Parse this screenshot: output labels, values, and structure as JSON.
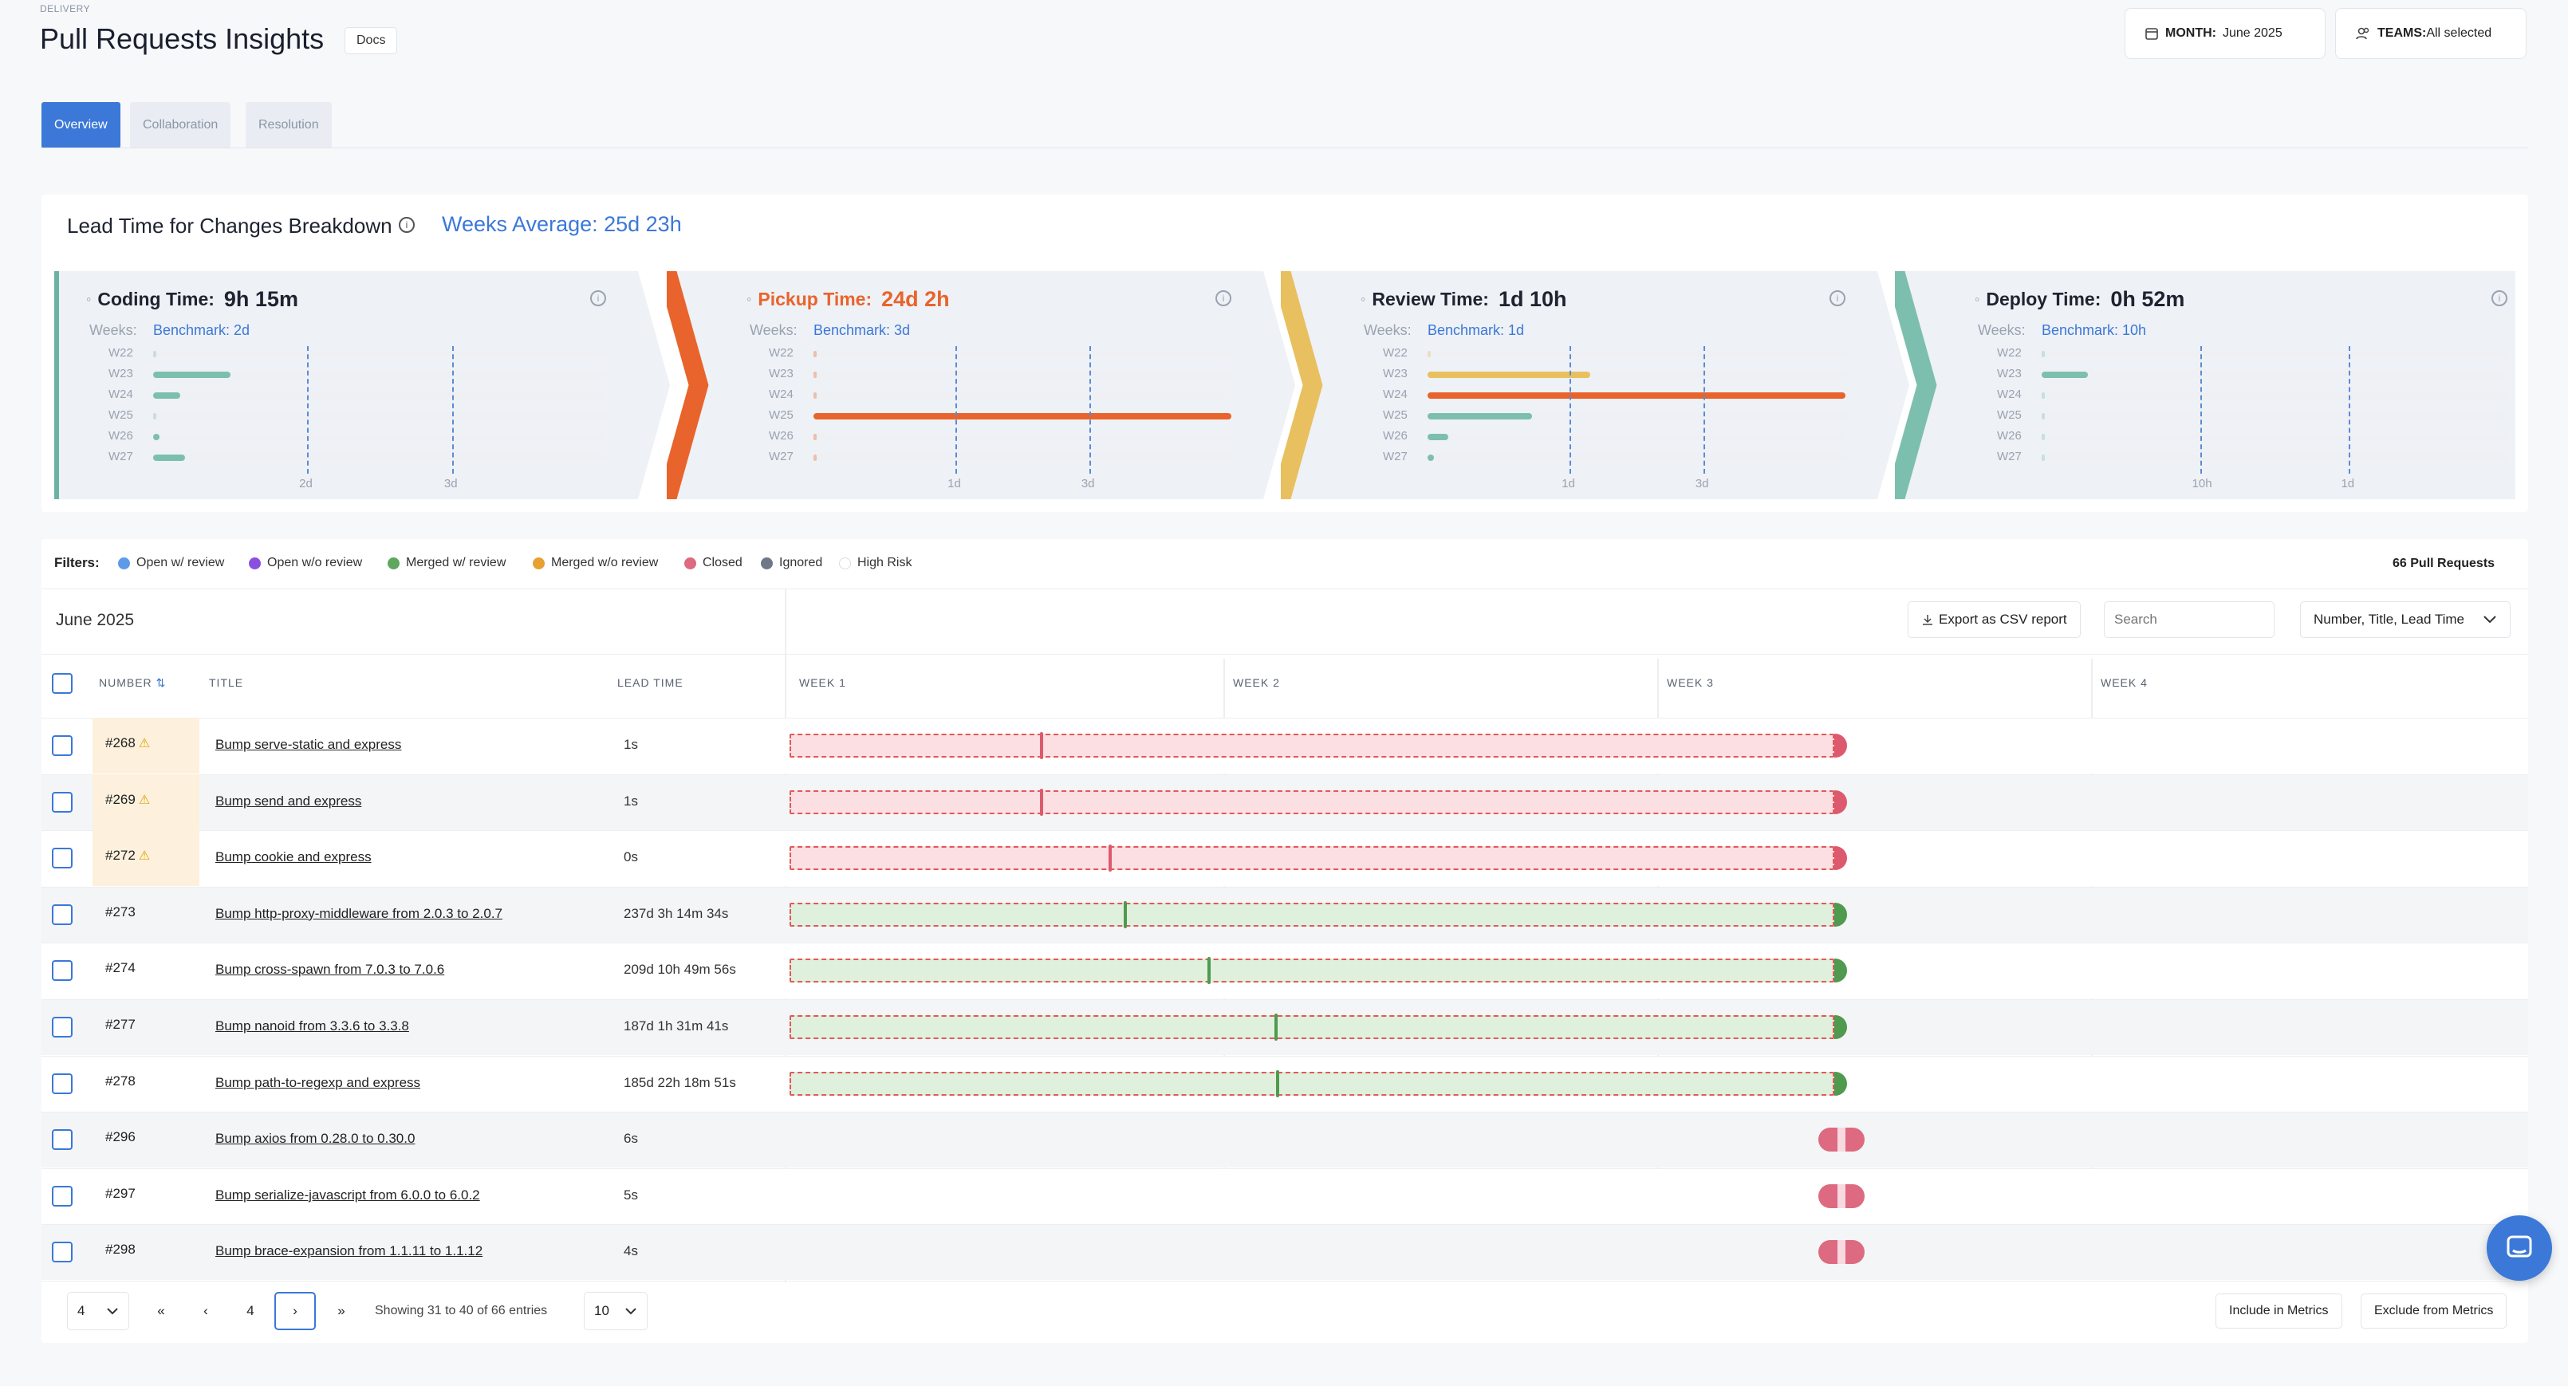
{
  "header": {
    "eyebrow": "DELIVERY",
    "title": "Pull Requests Insights",
    "docs_label": "Docs",
    "month_label": "MONTH:",
    "month_value": "June 2025",
    "teams_label": "TEAMS:",
    "teams_value": "All selected"
  },
  "tabs": [
    "Overview",
    "Collaboration",
    "Resolution"
  ],
  "lead": {
    "title": "Lead Time for Changes Breakdown",
    "weeks_average": "Weeks Average: 25d 23h",
    "weeks_label": "Weeks:",
    "week_names": [
      "W22",
      "W23",
      "W24",
      "W25",
      "W26",
      "W27"
    ],
    "stages": [
      {
        "name": "Coding Time:",
        "value": "9h 15m",
        "benchmark": "Benchmark: 2d",
        "color": "#6db3a5",
        "ticks": [
          "2d",
          "3d"
        ],
        "bars": [
          0,
          0.17,
          0.06,
          0,
          0.01,
          0.07
        ],
        "bar_colors": [
          "#7dbfae",
          "#7dbfae",
          "#7dbfae",
          "#7dbfae",
          "#7dbfae",
          "#7dbfae"
        ]
      },
      {
        "name": "Pickup Time:",
        "value": "24d 2h",
        "benchmark": "Benchmark: 3d",
        "color": "#e8642c",
        "ticks": [
          "1d",
          "3d"
        ],
        "bars": [
          0,
          0,
          0,
          1,
          0,
          0
        ],
        "bar_colors": [
          "#e8642c",
          "#e8642c",
          "#e8642c",
          "#e8642c",
          "#e8642c",
          "#e8642c"
        ]
      },
      {
        "name": "Review Time:",
        "value": "1d 10h",
        "benchmark": "Benchmark: 1d",
        "color": "#e8c060",
        "ticks": [
          "1d",
          "3d"
        ],
        "bars": [
          0,
          0.39,
          1,
          0.25,
          0.05,
          0.01
        ],
        "bar_colors": [
          "#e8c060",
          "#e8c060",
          "#e8642c",
          "#7dbfae",
          "#7dbfae",
          "#7dbfae"
        ]
      },
      {
        "name": "Deploy Time:",
        "value": "0h 52m",
        "benchmark": "Benchmark: 10h",
        "color": "#7dbfae",
        "ticks": [
          "10h",
          "1d"
        ],
        "bars": [
          0,
          0.1,
          0,
          0,
          0,
          0
        ],
        "bar_colors": [
          "#7dbfae",
          "#7dbfae",
          "#7dbfae",
          "#7dbfae",
          "#7dbfae",
          "#7dbfae"
        ]
      }
    ]
  },
  "filters": {
    "label": "Filters:",
    "items": [
      {
        "label": "Open w/ review",
        "color": "#5b9be8"
      },
      {
        "label": "Open w/o review",
        "color": "#8b4fe0"
      },
      {
        "label": "Merged w/ review",
        "color": "#5ea85e"
      },
      {
        "label": "Merged w/o review",
        "color": "#e8a030"
      },
      {
        "label": "Closed",
        "color": "#dd6a80"
      },
      {
        "label": "Ignored",
        "color": "#6e7888"
      },
      {
        "label": "High Risk",
        "color": "#ffffff"
      }
    ],
    "count": "66 Pull Requests"
  },
  "table": {
    "month": "June 2025",
    "csv_label": "Export as CSV report",
    "search_placeholder": "Search",
    "sort_value": "Number, Title, Lead Time",
    "headers": {
      "number": "NUMBER",
      "title": "TITLE",
      "lead": "LEAD TIME",
      "week1": "WEEK 1",
      "week2": "WEEK 2",
      "week3": "WEEK 3",
      "week4": "WEEK 4"
    },
    "rows": [
      {
        "number": "#268",
        "risk": true,
        "title": "Bump serve-static and express",
        "lead": "1s",
        "kind": "closed",
        "mark": 0.24
      },
      {
        "number": "#269",
        "risk": true,
        "title": "Bump send and express",
        "lead": "1s",
        "kind": "closed",
        "mark": 0.24
      },
      {
        "number": "#272",
        "risk": true,
        "title": "Bump cookie and express",
        "lead": "0s",
        "kind": "closed",
        "mark": 0.305
      },
      {
        "number": "#273",
        "risk": false,
        "title": "Bump http-proxy-middleware from 2.0.3 to 2.0.7",
        "lead": "237d 3h 14m 34s",
        "kind": "merged",
        "mark": 0.32
      },
      {
        "number": "#274",
        "risk": false,
        "title": "Bump cross-spawn from 7.0.3 to 7.0.6",
        "lead": "209d 10h 49m 56s",
        "kind": "merged",
        "mark": 0.4
      },
      {
        "number": "#277",
        "risk": false,
        "title": "Bump nanoid from 3.3.6 to 3.3.8",
        "lead": "187d 1h 31m 41s",
        "kind": "merged",
        "mark": 0.464
      },
      {
        "number": "#278",
        "risk": false,
        "title": "Bump path-to-regexp and express",
        "lead": "185d 22h 18m 51s",
        "kind": "merged",
        "mark": 0.466
      },
      {
        "number": "#296",
        "risk": false,
        "title": "Bump axios from 0.28.0 to 0.30.0",
        "lead": "6s",
        "kind": "pill",
        "mark": 0
      },
      {
        "number": "#297",
        "risk": false,
        "title": "Bump serialize-javascript from 6.0.0 to 6.0.2",
        "lead": "5s",
        "kind": "pill",
        "mark": 0
      },
      {
        "number": "#298",
        "risk": false,
        "title": "Bump brace-expansion from 1.1.11 to 1.1.12",
        "lead": "4s",
        "kind": "pill",
        "mark": 0
      }
    ]
  },
  "pagination": {
    "page_select": "4",
    "current": "4",
    "first": "«",
    "prev": "‹",
    "next": "›",
    "last": "»",
    "showing": "Showing 31 to 40 of 66 entries",
    "per_page": "10",
    "include_label": "Include in Metrics",
    "exclude_label": "Exclude from Metrics"
  },
  "icons": {
    "calendar": "calendar-icon",
    "teams": "users-icon",
    "chat": "chat-icon"
  }
}
